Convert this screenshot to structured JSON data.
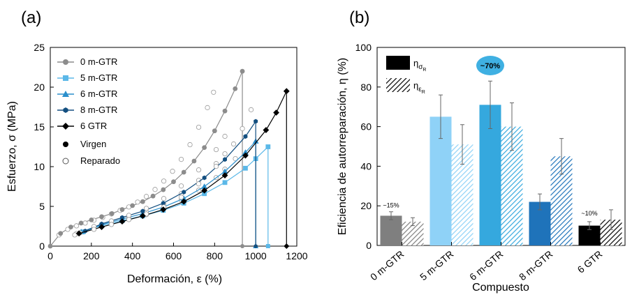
{
  "chart_data": [
    {
      "panel_label": "(a)",
      "type": "scatter",
      "xlabel": "Deformación, ε (%)",
      "ylabel": "Esfuerzo, σ (MPa)",
      "xlim": [
        0,
        1200
      ],
      "ylim": [
        0,
        25
      ],
      "xticks": [
        "0",
        "200",
        "400",
        "600",
        "800",
        "1000",
        "1200"
      ],
      "yticks": [
        "0",
        "5",
        "10",
        "15",
        "20",
        "25"
      ],
      "legend_position": "top-left",
      "series": [
        {
          "name": "0 m-GTR",
          "color": "#8c8c8c",
          "marker": "circle",
          "x": [
            0,
            50,
            100,
            150,
            200,
            250,
            300,
            350,
            400,
            450,
            500,
            550,
            600,
            650,
            700,
            750,
            800,
            850,
            900,
            935
          ],
          "y": [
            0,
            1.6,
            2.4,
            2.9,
            3.3,
            3.7,
            4.1,
            4.6,
            5.1,
            5.6,
            6.3,
            7.1,
            8.1,
            9.3,
            10.7,
            12.4,
            14.5,
            17.0,
            19.8,
            22.0
          ],
          "break_x": 935
        },
        {
          "name": "5 m-GTR",
          "color": "#5bb8e8",
          "marker": "square",
          "x": [
            160,
            250,
            350,
            450,
            550,
            650,
            750,
            850,
            950,
            1000,
            1060
          ],
          "y": [
            1.8,
            2.6,
            3.2,
            3.8,
            4.5,
            5.4,
            6.6,
            8.0,
            9.8,
            11.0,
            12.5
          ],
          "break_x": 1060
        },
        {
          "name": "6 m-GTR",
          "color": "#2a8fcc",
          "marker": "triangle",
          "x": [
            150,
            250,
            350,
            450,
            550,
            650,
            750,
            850,
            950,
            1000
          ],
          "y": [
            1.8,
            2.7,
            3.4,
            4.1,
            4.9,
            6.0,
            7.5,
            9.4,
            11.8,
            13.2
          ],
          "break_x": 1000
        },
        {
          "name": "8 m-GTR",
          "color": "#134f80",
          "marker": "hexagon",
          "x": [
            170,
            250,
            350,
            450,
            550,
            650,
            750,
            850,
            950,
            1000
          ],
          "y": [
            1.9,
            2.8,
            3.6,
            4.4,
            5.4,
            6.8,
            8.6,
            10.9,
            13.8,
            15.7
          ],
          "break_x": 1000
        },
        {
          "name": "6 GTR",
          "color": "#000000",
          "marker": "diamond",
          "x": [
            140,
            250,
            350,
            450,
            550,
            650,
            750,
            850,
            950,
            1050,
            1100,
            1150
          ],
          "y": [
            1.6,
            2.4,
            3.1,
            3.8,
            4.6,
            5.6,
            7.0,
            8.9,
            11.4,
            14.6,
            16.8,
            19.5
          ],
          "break_x": 1150
        }
      ],
      "legend_extra": [
        {
          "label": "Virgen",
          "marker": "filled-circle"
        },
        {
          "label": "Reparado",
          "marker": "open-circle"
        }
      ]
    },
    {
      "panel_label": "(b)",
      "type": "bar",
      "xlabel": "Compuesto",
      "ylabel": "Eficiencia de autorreparación, η (%)",
      "ylim": [
        0,
        100
      ],
      "yticks": [
        "0",
        "20",
        "40",
        "60",
        "80",
        "100"
      ],
      "categories": [
        "0 m-GTR",
        "5 m-GTR",
        "6 m-GTR",
        "8 m-GTR",
        "6 GTR"
      ],
      "colors": [
        "#7f7f7f",
        "#8fd2f7",
        "#35a8de",
        "#1f73ba",
        "#000000"
      ],
      "series": [
        {
          "name": "ησR",
          "fill": "solid",
          "values": [
            15,
            65,
            71,
            22,
            10
          ],
          "errors": [
            2,
            11,
            12,
            4,
            2
          ]
        },
        {
          "name": "ηεR",
          "fill": "hatched",
          "values": [
            12,
            51,
            60,
            45,
            13
          ],
          "errors": [
            2,
            10,
            12,
            9,
            5
          ]
        }
      ],
      "legend": [
        {
          "main": "η",
          "sub1": "σ",
          "sub2": "R"
        },
        {
          "main": "η",
          "sub1": "ε",
          "sub2": "R"
        }
      ],
      "annotations": [
        {
          "category": "0 m-GTR",
          "text": "~15%"
        },
        {
          "category": "6 m-GTR",
          "text": "~70%"
        },
        {
          "category": "6 GTR",
          "text": "~10%"
        }
      ]
    }
  ]
}
